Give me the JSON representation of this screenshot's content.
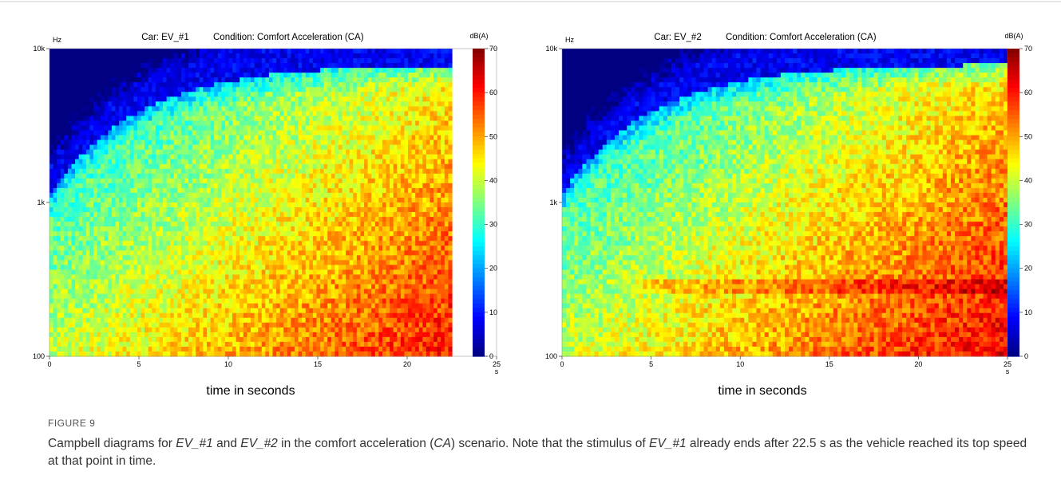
{
  "chart_data": [
    {
      "type": "spectrogram",
      "title": [
        "Car: EV_#1",
        "Condition: Comfort Acceleration (CA)"
      ],
      "xlabel": "time in seconds",
      "x_unit": "s",
      "y_unit": "Hz",
      "colorbar_label": "dB(A)",
      "xlim": [
        0,
        25
      ],
      "xticks": [
        0,
        5,
        10,
        15,
        20,
        25
      ],
      "data_xlim": [
        0,
        22.5
      ],
      "ylim": [
        100,
        10000
      ],
      "log_y": true,
      "yticks": [
        {
          "value": 100,
          "label": "100"
        },
        {
          "value": 1000,
          "label": "1k"
        },
        {
          "value": 10000,
          "label": "10k"
        }
      ],
      "clim": [
        0,
        70
      ],
      "cticks": [
        0,
        10,
        20,
        30,
        40,
        50,
        60,
        70
      ],
      "colormap": "jet"
    },
    {
      "type": "spectrogram",
      "title": [
        "Car: EV_#2",
        "Condition: Comfort Acceleration (CA)"
      ],
      "xlabel": "time in seconds",
      "x_unit": "s",
      "y_unit": "Hz",
      "colorbar_label": "dB(A)",
      "xlim": [
        0,
        25
      ],
      "xticks": [
        0,
        5,
        10,
        15,
        20,
        25
      ],
      "data_xlim": [
        0,
        25
      ],
      "ylim": [
        100,
        10000
      ],
      "log_y": true,
      "yticks": [
        {
          "value": 100,
          "label": "100"
        },
        {
          "value": 1000,
          "label": "1k"
        },
        {
          "value": 10000,
          "label": "10k"
        }
      ],
      "clim": [
        0,
        70
      ],
      "cticks": [
        0,
        10,
        20,
        30,
        40,
        50,
        60,
        70
      ],
      "colormap": "jet"
    }
  ],
  "figure": {
    "label": "FIGURE 9",
    "caption": [
      {
        "text": "Campbell diagrams for ",
        "italic": false
      },
      {
        "text": "EV_#1",
        "italic": true
      },
      {
        "text": " and ",
        "italic": false
      },
      {
        "text": "EV_#2",
        "italic": true
      },
      {
        "text": " in the comfort acceleration (",
        "italic": false
      },
      {
        "text": "CA",
        "italic": true
      },
      {
        "text": ") scenario. Note that the stimulus of ",
        "italic": false
      },
      {
        "text": "EV_#1",
        "italic": true
      },
      {
        "text": " already ends after 22.5 s as the vehicle reached its top speed at that point in time.",
        "italic": false
      }
    ]
  }
}
